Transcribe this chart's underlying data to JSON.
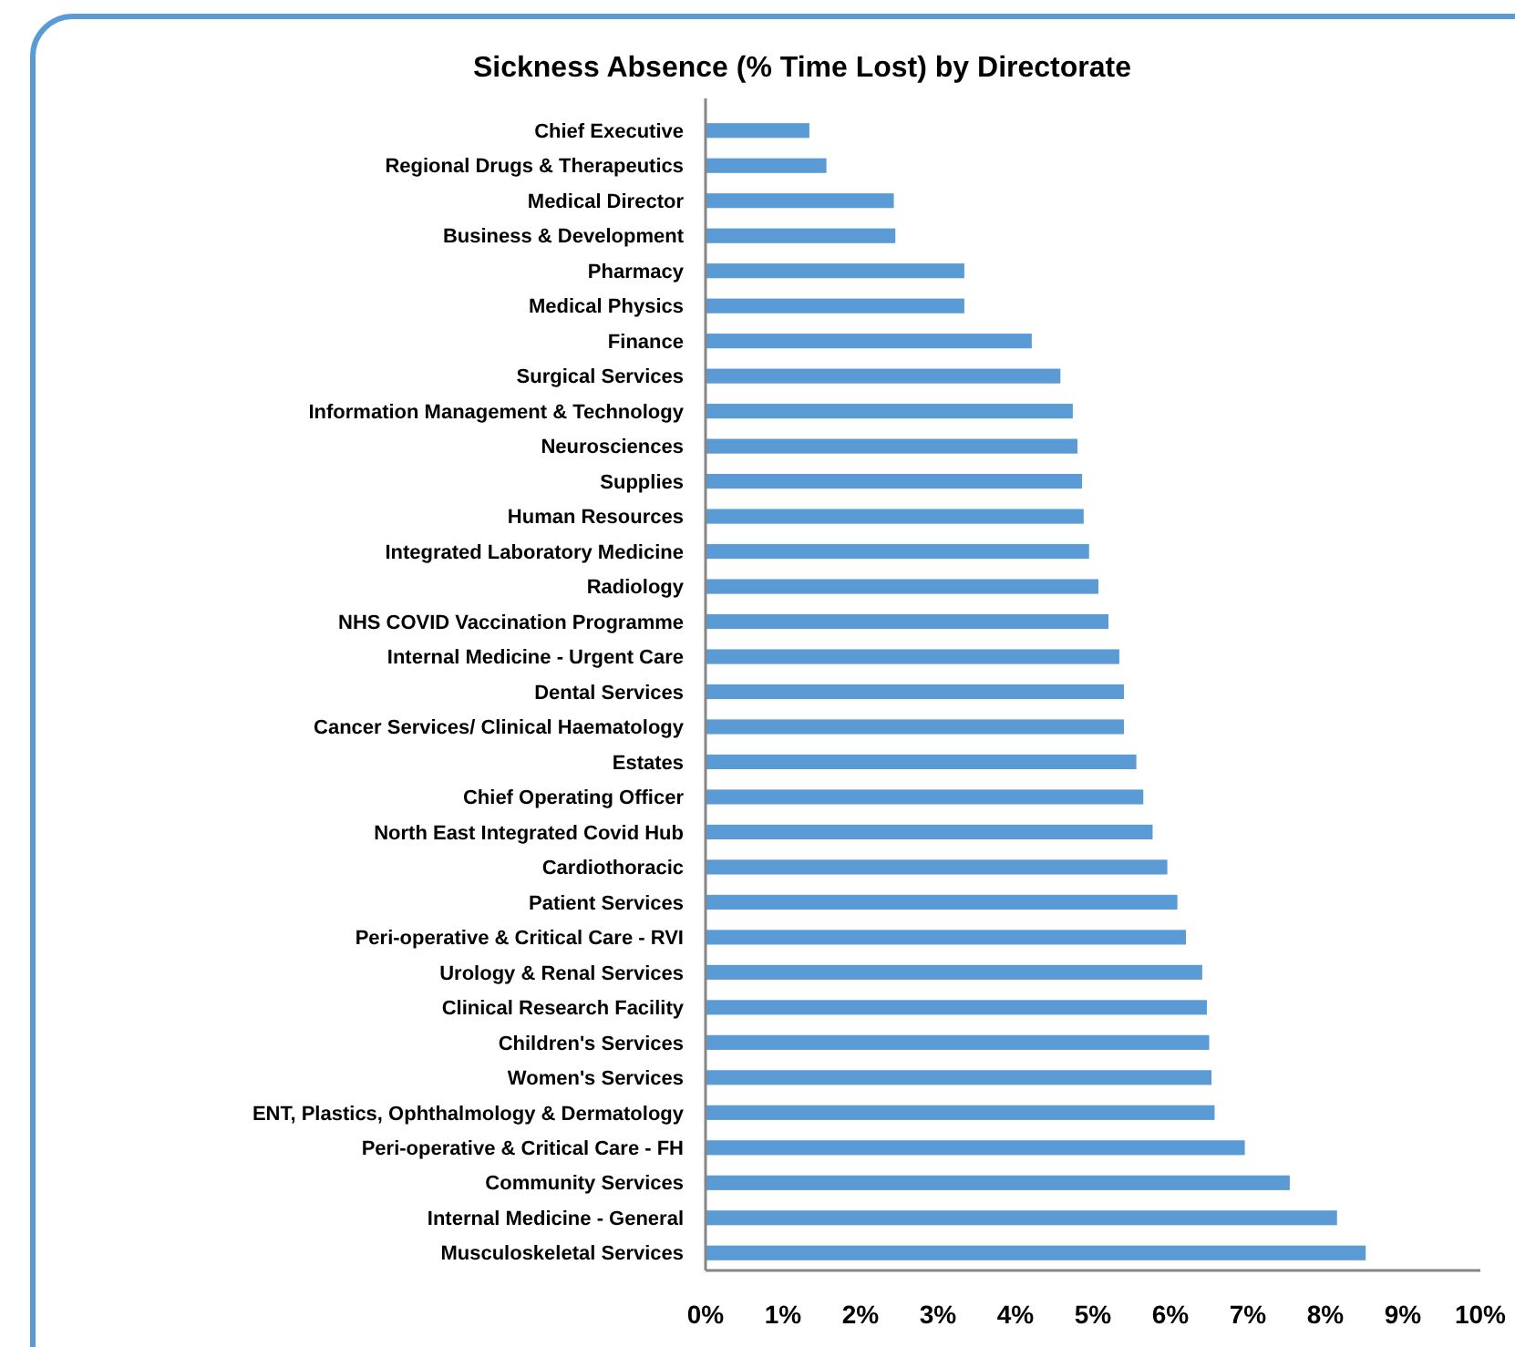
{
  "chart_data": {
    "type": "bar",
    "orientation": "horizontal",
    "title": "Sickness Absence (% Time Lost) by Directorate",
    "categories": [
      "Chief Executive",
      "Regional Drugs & Therapeutics",
      "Medical Director",
      "Business & Development",
      "Pharmacy",
      "Medical Physics",
      "Finance",
      "Surgical Services",
      "Information Management & Technology",
      "Neurosciences",
      "Supplies",
      "Human Resources",
      "Integrated Laboratory Medicine",
      "Radiology",
      "NHS COVID Vaccination Programme",
      "Internal Medicine - Urgent Care",
      "Dental Services",
      "Cancer Services/ Clinical Haematology",
      "Estates",
      "Chief Operating Officer",
      "North East Integrated Covid Hub",
      "Cardiothoracic",
      "Patient Services",
      "Peri-operative & Critical Care - RVI",
      "Urology & Renal Services",
      "Clinical Research Facility",
      "Children's Services",
      "Women's Services",
      "ENT, Plastics, Ophthalmology & Dermatology",
      "Peri-operative & Critical Care - FH",
      "Community Services",
      "Internal Medicine - General",
      "Musculoskeletal Services"
    ],
    "values": [
      1.34,
      1.56,
      2.43,
      2.45,
      3.34,
      3.34,
      4.21,
      4.58,
      4.74,
      4.8,
      4.86,
      4.88,
      4.95,
      5.07,
      5.2,
      5.34,
      5.4,
      5.4,
      5.56,
      5.65,
      5.77,
      5.96,
      6.09,
      6.2,
      6.41,
      6.47,
      6.5,
      6.53,
      6.57,
      6.96,
      7.54,
      8.15,
      8.52
    ],
    "color": "#5b9bd5",
    "xlim": [
      0,
      10
    ],
    "xticks": [
      {
        "value": 0,
        "label": "0%"
      },
      {
        "value": 1,
        "label": "1%"
      },
      {
        "value": 2,
        "label": "2%"
      },
      {
        "value": 3,
        "label": "3%"
      },
      {
        "value": 4,
        "label": "4%"
      },
      {
        "value": 5,
        "label": "5%"
      },
      {
        "value": 6,
        "label": "6%"
      },
      {
        "value": 7,
        "label": "7%"
      },
      {
        "value": 8,
        "label": "8%"
      },
      {
        "value": 9,
        "label": "9%"
      },
      {
        "value": 10,
        "label": "10%"
      }
    ],
    "grid": false
  }
}
